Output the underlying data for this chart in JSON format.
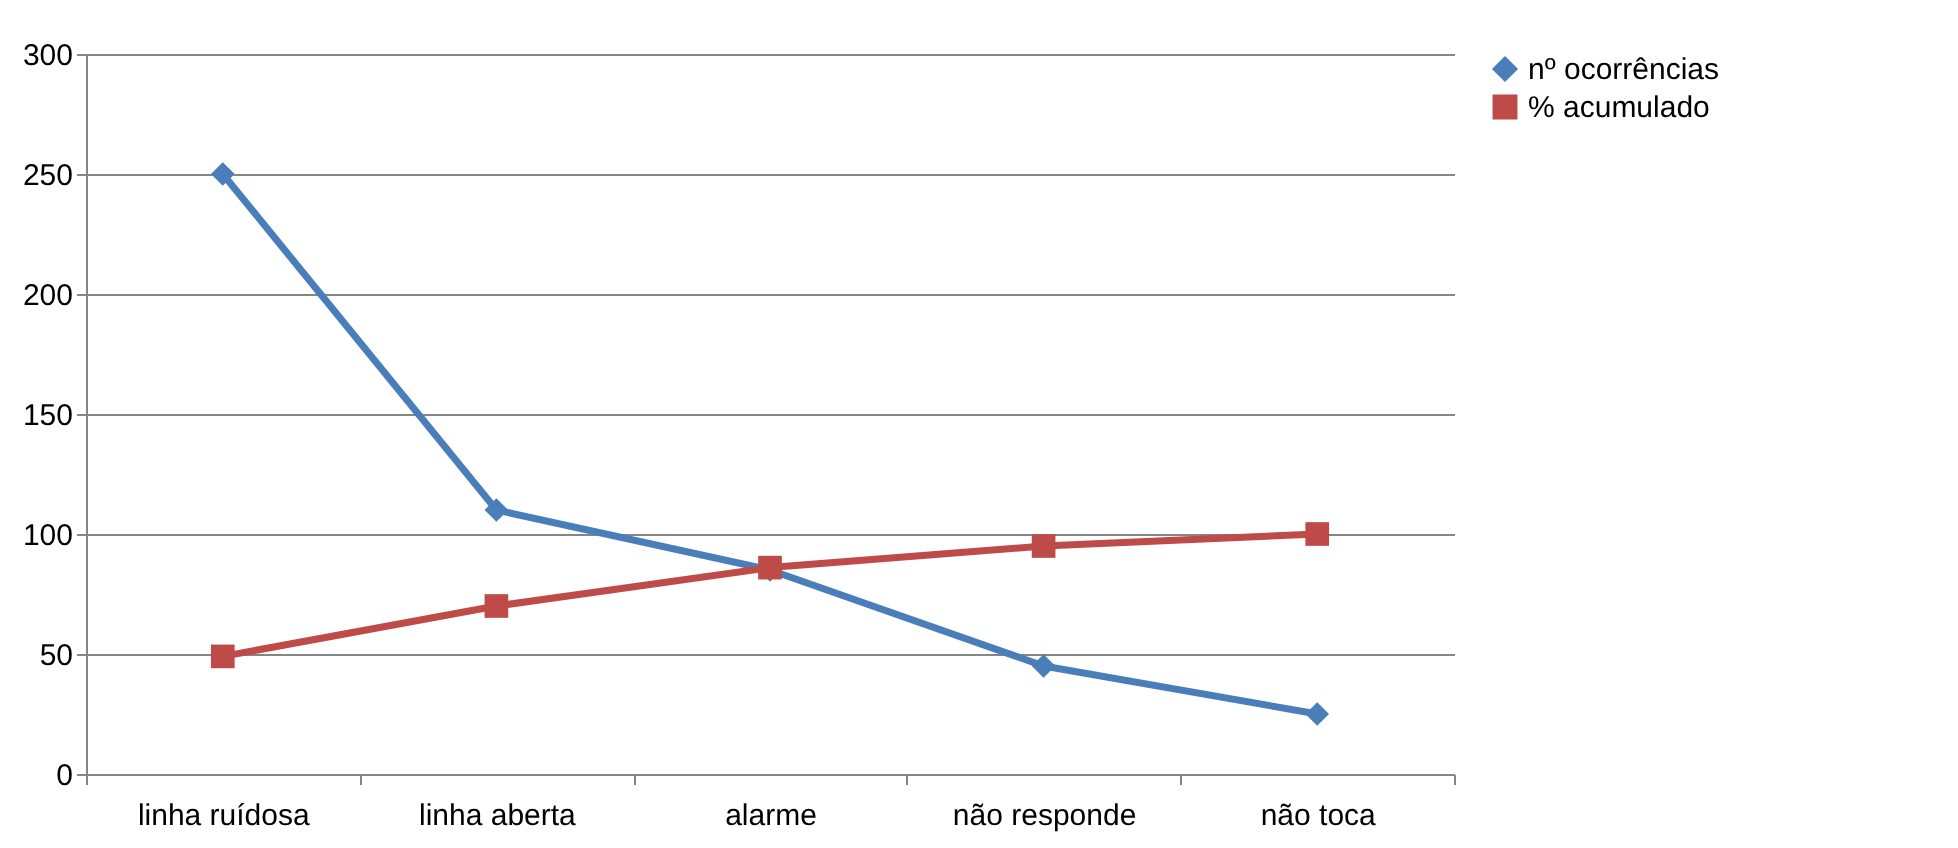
{
  "chart_data": {
    "type": "line",
    "categories": [
      "linha ruídosa",
      "linha aberta",
      "alarme",
      "não responde",
      "não toca"
    ],
    "series": [
      {
        "name": "nº ocorrências",
        "color": "#4a7ebb",
        "marker": "diamond",
        "values": [
          250,
          110,
          85,
          45,
          25
        ]
      },
      {
        "name": "% acumulado",
        "color": "#be4b48",
        "marker": "square",
        "values": [
          49,
          70,
          86,
          95,
          100
        ]
      }
    ],
    "ylim": [
      0,
      300
    ],
    "yticks": [
      0,
      50,
      100,
      150,
      200,
      250,
      300
    ],
    "grid": "y",
    "legend": "right",
    "line_style": "solid"
  }
}
